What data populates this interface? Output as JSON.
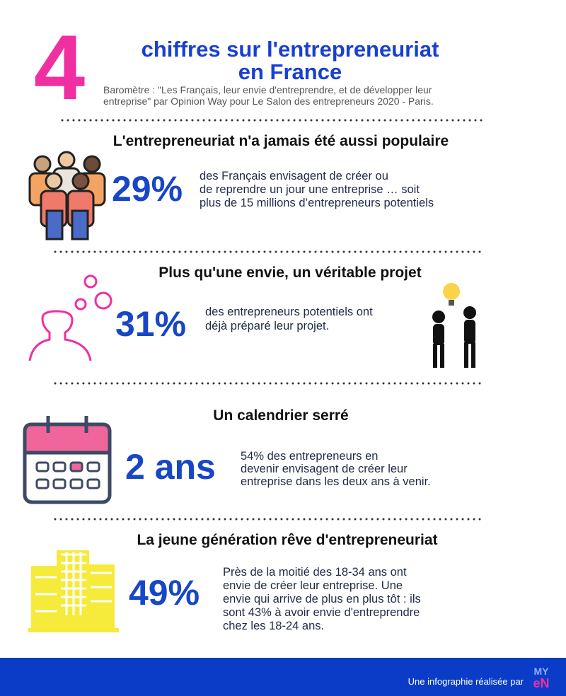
{
  "header": {
    "big_number": "4",
    "title_lines": [
      "chiffres sur l'entrepreneuriat",
      "en France"
    ],
    "subtitle_lines": [
      "Baromètre : \"Les Français, leur envie d'entreprendre, et de développer leur",
      "entreprise\" par Opinion Way pour Le Salon des entrepreneurs 2020 - Paris."
    ]
  },
  "sections": [
    {
      "heading": "L'entrepreneuriat n'a jamais été aussi populaire",
      "stat": "29%",
      "text_lines": [
        "des Français envisagent de créer ou",
        "de reprendre un jour une entreprise … soit",
        "plus de 15 millions d’entrepreneurs potentiels"
      ]
    },
    {
      "heading": "Plus qu'une envie, un véritable projet",
      "stat": "31%",
      "text_lines": [
        "des entrepreneurs potentiels ont",
        "déjà préparé leur projet."
      ]
    },
    {
      "heading": "Un calendrier serré",
      "stat": "2 ans",
      "text_lines": [
        "54% des entrepreneurs en",
        "devenir envisagent de créer leur",
        "entreprise dans les deux ans à venir."
      ]
    },
    {
      "heading": "La jeune génération rêve d'entrepreneuriat",
      "stat": "49%",
      "text_lines": [
        "Près de la moitié des 18-34 ans ont",
        "envie de créer leur entreprise. Une",
        "envie qui arrive de plus en plus tôt : ils",
        "sont 43% à avoir envie d'entreprendre",
        "chez les 18-24 ans."
      ]
    }
  ],
  "footer": {
    "credit": "Une infographie réalisée par",
    "logo_top": "MY",
    "logo_bottom": "eN"
  }
}
